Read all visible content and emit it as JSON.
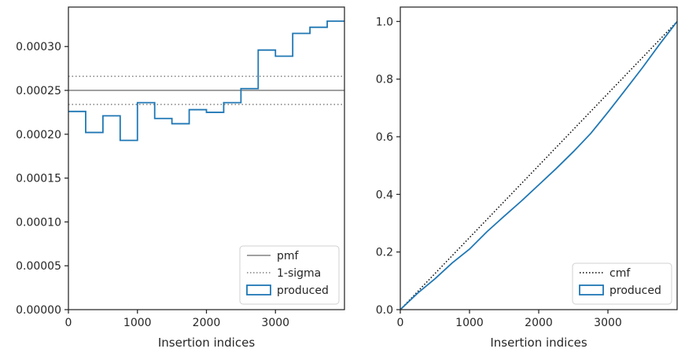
{
  "chart_data": [
    {
      "type": "step",
      "xlabel": "Insertion indices",
      "ylabel": "",
      "xlim": [
        0,
        4000
      ],
      "ylim": [
        0,
        0.000345
      ],
      "xticks": [
        0,
        1000,
        2000,
        3000
      ],
      "xtick_labels": [
        "0",
        "1000",
        "2000",
        "3000"
      ],
      "yticks": [
        0,
        5e-05,
        0.0001,
        0.00015,
        0.0002,
        0.00025,
        0.0003
      ],
      "ytick_labels": [
        "0.00000",
        "0.00005",
        "0.00010",
        "0.00015",
        "0.00020",
        "0.00025",
        "0.00030"
      ],
      "hlines": [
        {
          "name": "pmf",
          "y": 0.00025,
          "style": "solid",
          "color": "#808080"
        },
        {
          "name": "1-sigma",
          "y": 0.000266,
          "style": "dotted",
          "color": "#808080"
        },
        {
          "name": "1-sigma",
          "y": 0.000234,
          "style": "dotted",
          "color": "#808080"
        }
      ],
      "series": [
        {
          "name": "produced",
          "color": "#1f77b4",
          "bin_edges": [
            0,
            250,
            500,
            750,
            1000,
            1250,
            1500,
            1750,
            2000,
            2250,
            2500,
            2750,
            3000,
            3250,
            3500,
            3750,
            4000
          ],
          "values": [
            0.000226,
            0.000202,
            0.000221,
            0.000193,
            0.000236,
            0.000218,
            0.000212,
            0.000228,
            0.000225,
            0.000236,
            0.000252,
            0.000296,
            0.000289,
            0.000315,
            0.000322,
            0.000329
          ]
        }
      ],
      "legend": {
        "placement": "lower right",
        "entries": [
          "pmf",
          "1-sigma",
          "produced"
        ]
      }
    },
    {
      "type": "line",
      "xlabel": "Insertion indices",
      "ylabel": "",
      "xlim": [
        0,
        4000
      ],
      "ylim": [
        0,
        1.05
      ],
      "xticks": [
        0,
        1000,
        2000,
        3000
      ],
      "xtick_labels": [
        "0",
        "1000",
        "2000",
        "3000"
      ],
      "yticks": [
        0,
        0.2,
        0.4,
        0.6,
        0.8,
        1.0
      ],
      "ytick_labels": [
        "0.0",
        "0.2",
        "0.4",
        "0.6",
        "0.8",
        "1.0"
      ],
      "series": [
        {
          "name": "cmf",
          "style": "dotted",
          "color": "#000000",
          "x": [
            0,
            4000
          ],
          "y": [
            0,
            1.0
          ]
        },
        {
          "name": "produced",
          "color": "#1f77b4",
          "x": [
            0,
            250,
            500,
            750,
            1000,
            1250,
            1500,
            1750,
            2000,
            2250,
            2500,
            2750,
            3000,
            3250,
            3500,
            3750,
            4000
          ],
          "y": [
            0,
            0.057,
            0.107,
            0.162,
            0.21,
            0.27,
            0.324,
            0.377,
            0.433,
            0.489,
            0.548,
            0.611,
            0.685,
            0.762,
            0.84,
            0.922,
            1.0
          ]
        }
      ],
      "legend": {
        "placement": "lower right",
        "entries": [
          "cmf",
          "produced"
        ]
      }
    }
  ]
}
